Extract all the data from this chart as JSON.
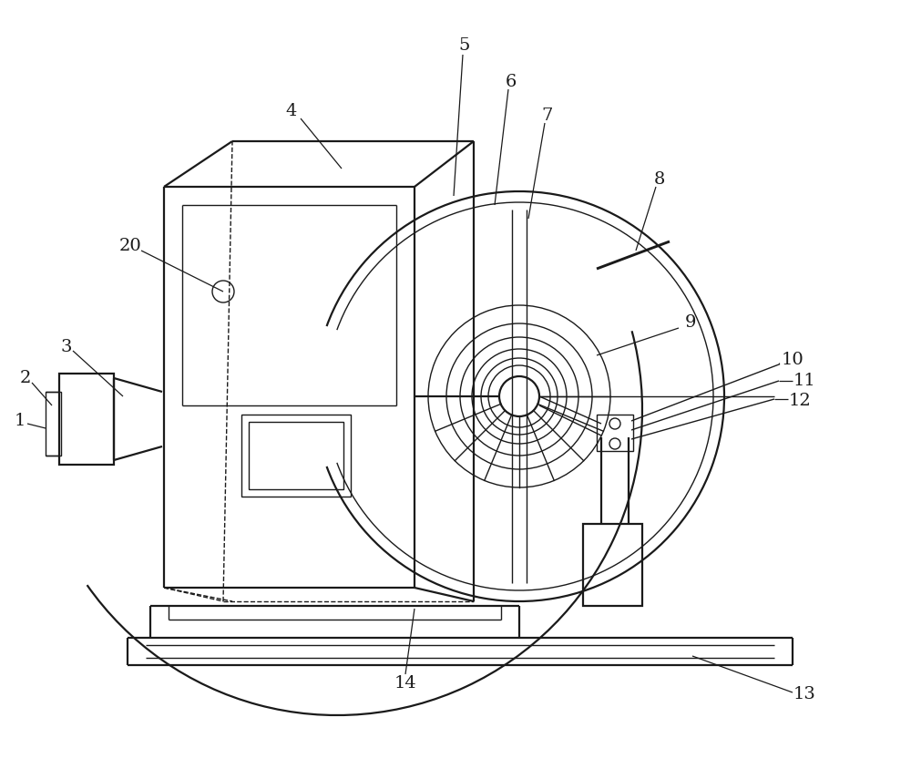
{
  "bg_color": "#ffffff",
  "line_color": "#1a1a1a",
  "lw_main": 1.6,
  "lw_thin": 1.0,
  "lw_ann": 0.9,
  "fig_width": 10.0,
  "fig_height": 8.55
}
